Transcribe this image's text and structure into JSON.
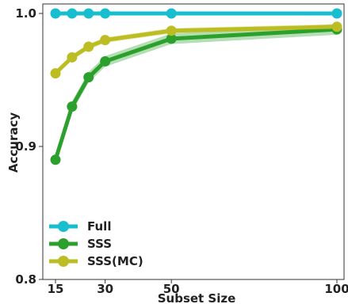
{
  "chart_data": {
    "type": "line",
    "xlabel": "Subset Size",
    "ylabel": "Accuracy",
    "xlim": [
      12,
      100
    ],
    "ylim": [
      0.8,
      1.0
    ],
    "x_ticks": [
      15,
      30,
      50,
      100
    ],
    "y_ticks": [
      0.8,
      0.9,
      1.0
    ],
    "y_tick_labels": [
      "0.8",
      "0.9",
      "1.0"
    ],
    "x": [
      15,
      20,
      25,
      30,
      50,
      100
    ],
    "legend_position": "bottom-left",
    "grid": false,
    "series": [
      {
        "name": "Full",
        "color": "#17becf",
        "values": [
          1.0,
          1.0,
          1.0,
          1.0,
          1.0,
          1.0
        ],
        "band": 0
      },
      {
        "name": "SSS",
        "color": "#2ca02c",
        "values": [
          0.89,
          0.93,
          0.952,
          0.964,
          0.981,
          0.988
        ],
        "band": 0.004
      },
      {
        "name": "SSS(MC)",
        "color": "#bcbd22",
        "values": [
          0.955,
          0.967,
          0.975,
          0.98,
          0.987,
          0.99
        ],
        "band": 0.002
      }
    ]
  }
}
